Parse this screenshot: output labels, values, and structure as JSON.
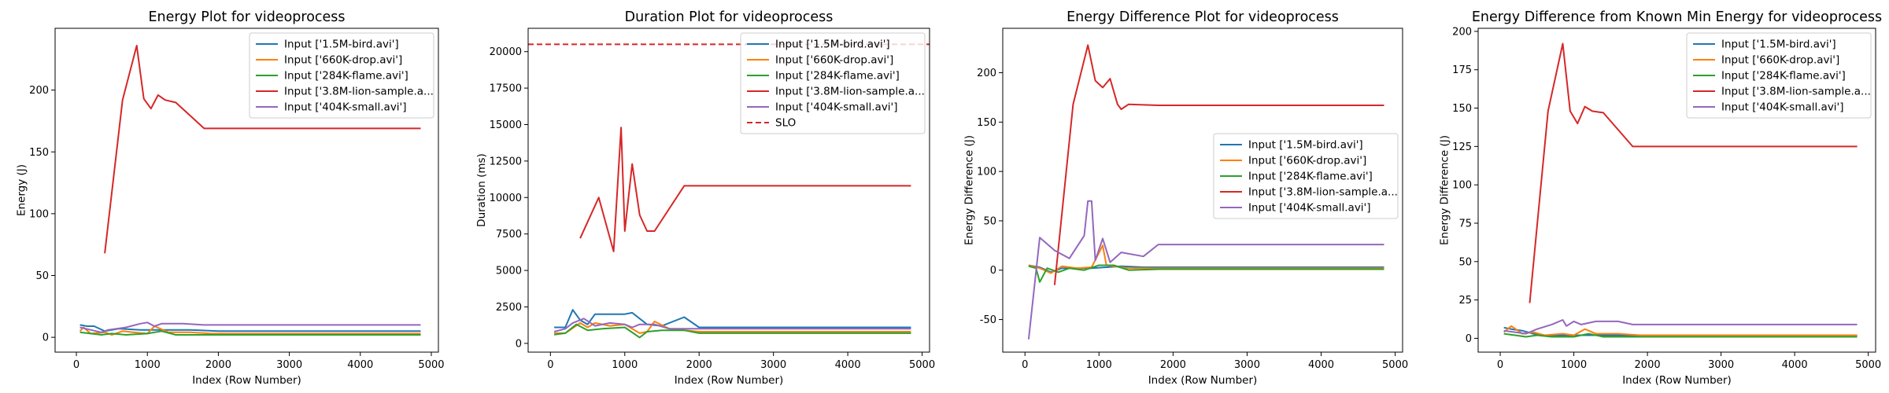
{
  "colors": {
    "bird": "#1f77b4",
    "drop": "#ff7f0e",
    "flame": "#2ca02c",
    "lion": "#d62728",
    "small": "#9467bd",
    "slo": "#d62728"
  },
  "chart_data": [
    {
      "type": "line",
      "title": "Energy Plot for videoprocess",
      "xlabel": "Index (Row Number)",
      "ylabel": "Energy (J)",
      "xlim": [
        -300,
        5100
      ],
      "ylim": [
        -12,
        250
      ],
      "xticks": [
        0,
        1000,
        2000,
        3000,
        4000,
        5000
      ],
      "yticks": [
        0,
        50,
        100,
        150,
        200
      ],
      "legend": "upper right",
      "series": [
        {
          "name": "Input ['1.5M-bird.avi']",
          "color": "#1f77b4",
          "x": [
            50,
            150,
            250,
            400,
            600,
            900,
            1100,
            1300,
            1600,
            2000,
            4850
          ],
          "y": [
            10,
            9,
            9,
            5,
            7,
            6,
            6,
            6,
            6,
            5,
            5
          ]
        },
        {
          "name": "Input ['660K-drop.avi']",
          "color": "#ff7f0e",
          "x": [
            50,
            100,
            200,
            400,
            500,
            650,
            800,
            1000,
            1100,
            1300,
            1600,
            1900,
            4850
          ],
          "y": [
            5,
            8,
            3,
            4,
            2,
            5,
            4,
            3,
            9,
            4,
            4,
            3,
            3
          ]
        },
        {
          "name": "Input ['284K-flame.avi']",
          "color": "#2ca02c",
          "x": [
            50,
            200,
            350,
            500,
            700,
            1000,
            1200,
            1400,
            1700,
            2000,
            4850
          ],
          "y": [
            4,
            3,
            2,
            3,
            2,
            3,
            5,
            2,
            2,
            2,
            2
          ]
        },
        {
          "name": "Input ['3.8M-lion-sample.a...",
          "color": "#d62728",
          "x": [
            400,
            650,
            850,
            950,
            1050,
            1150,
            1250,
            1400,
            1800,
            4850
          ],
          "y": [
            68,
            192,
            236,
            193,
            185,
            196,
            192,
            190,
            169,
            169
          ]
        },
        {
          "name": "Input ['404K-small.avi']",
          "color": "#9467bd",
          "x": [
            50,
            200,
            350,
            450,
            700,
            900,
            1000,
            1100,
            1200,
            1500,
            1800,
            4850
          ],
          "y": [
            8,
            6,
            4,
            6,
            8,
            11,
            12,
            9,
            11,
            11,
            10,
            10
          ]
        }
      ]
    },
    {
      "type": "line",
      "title": "Duration Plot for videoprocess",
      "xlabel": "Index (Row Number)",
      "ylabel": "Duration (ms)",
      "xlim": [
        -300,
        5100
      ],
      "ylim": [
        -600,
        21600
      ],
      "xticks": [
        0,
        1000,
        2000,
        3000,
        4000,
        5000
      ],
      "yticks": [
        0,
        2500,
        5000,
        7500,
        10000,
        12500,
        15000,
        17500,
        20000
      ],
      "legend": "upper right",
      "slo": {
        "name": "SLO",
        "color": "#d62728",
        "y": 20500
      },
      "series": [
        {
          "name": "Input ['1.5M-bird.avi']",
          "color": "#1f77b4",
          "x": [
            50,
            200,
            300,
            400,
            500,
            600,
            1000,
            1100,
            1300,
            1500,
            1800,
            2000,
            4850
          ],
          "y": [
            1100,
            1100,
            2300,
            1600,
            1300,
            2000,
            2000,
            2100,
            1300,
            1200,
            1800,
            1100,
            1100
          ]
        },
        {
          "name": "Input ['660K-drop.avi']",
          "color": "#ff7f0e",
          "x": [
            50,
            200,
            400,
            500,
            600,
            800,
            1000,
            1100,
            1200,
            1300,
            1400,
            1600,
            2000,
            4850
          ],
          "y": [
            700,
            700,
            1400,
            1100,
            1400,
            1200,
            1300,
            1000,
            700,
            800,
            1500,
            1000,
            800,
            800
          ]
        },
        {
          "name": "Input ['284K-flame.avi']",
          "color": "#2ca02c",
          "x": [
            50,
            200,
            350,
            500,
            700,
            1000,
            1200,
            1300,
            1500,
            1800,
            2000,
            4850
          ],
          "y": [
            600,
            700,
            1300,
            900,
            1000,
            1100,
            400,
            800,
            900,
            900,
            700,
            700
          ]
        },
        {
          "name": "Input ['3.8M-lion-sample.a...",
          "color": "#d62728",
          "x": [
            400,
            650,
            850,
            950,
            1000,
            1100,
            1200,
            1300,
            1400,
            1800,
            4850
          ],
          "y": [
            7200,
            10000,
            6300,
            14800,
            7700,
            12300,
            8800,
            7700,
            7700,
            10800,
            10800
          ]
        },
        {
          "name": "Input ['404K-small.avi']",
          "color": "#9467bd",
          "x": [
            50,
            200,
            300,
            450,
            600,
            800,
            1000,
            1100,
            1200,
            1400,
            1600,
            1800,
            4850
          ],
          "y": [
            800,
            1000,
            1400,
            1700,
            1200,
            1400,
            1300,
            1100,
            1300,
            1300,
            1000,
            1000,
            1000
          ]
        }
      ]
    },
    {
      "type": "line",
      "title": "Energy Difference Plot for videoprocess",
      "xlabel": "Index (Row Number)",
      "ylabel": "Energy Difference (J)",
      "xlim": [
        -300,
        5100
      ],
      "ylim": [
        -83,
        245
      ],
      "xticks": [
        0,
        1000,
        2000,
        3000,
        4000,
        5000
      ],
      "yticks": [
        -50,
        0,
        50,
        100,
        150,
        200
      ],
      "legend": "center right",
      "series": [
        {
          "name": "Input ['1.5M-bird.avi']",
          "color": "#1f77b4",
          "x": [
            50,
            200,
            350,
            500,
            700,
            900,
            1100,
            1300,
            1600,
            2000,
            4850
          ],
          "y": [
            5,
            3,
            -2,
            2,
            2,
            2,
            3,
            4,
            3,
            3,
            3
          ]
        },
        {
          "name": "Input ['660K-drop.avi']",
          "color": "#ff7f0e",
          "x": [
            50,
            200,
            350,
            500,
            700,
            900,
            1050,
            1100,
            1200,
            1400,
            1800,
            4850
          ],
          "y": [
            5,
            2,
            -3,
            4,
            2,
            3,
            25,
            5,
            4,
            2,
            2,
            2
          ]
        },
        {
          "name": "Input ['284K-flame.avi']",
          "color": "#2ca02c",
          "x": [
            50,
            150,
            200,
            300,
            450,
            600,
            800,
            1000,
            1200,
            1400,
            1800,
            4850
          ],
          "y": [
            4,
            2,
            -12,
            2,
            -2,
            2,
            0,
            5,
            5,
            0,
            1,
            1
          ]
        },
        {
          "name": "Input ['3.8M-lion-sample.a...",
          "color": "#d62728",
          "x": [
            400,
            650,
            850,
            950,
            1050,
            1150,
            1250,
            1300,
            1400,
            1800,
            4850
          ],
          "y": [
            -15,
            168,
            228,
            192,
            185,
            194,
            168,
            163,
            168,
            167,
            167
          ]
        },
        {
          "name": "Input ['404K-small.avi']",
          "color": "#9467bd",
          "x": [
            50,
            200,
            400,
            600,
            800,
            850,
            900,
            950,
            1050,
            1150,
            1300,
            1600,
            1800,
            4850
          ],
          "y": [
            -70,
            33,
            20,
            12,
            35,
            70,
            70,
            10,
            32,
            8,
            18,
            14,
            26,
            26
          ]
        }
      ]
    },
    {
      "type": "line",
      "title": "Energy Difference from Known Min Energy for videoprocess",
      "xlabel": "Index (Row Number)",
      "ylabel": "Energy Difference (J)",
      "xlim": [
        -300,
        5100
      ],
      "ylim": [
        -9,
        202
      ],
      "xticks": [
        0,
        1000,
        2000,
        3000,
        4000,
        5000
      ],
      "yticks": [
        0,
        25,
        50,
        75,
        100,
        125,
        150,
        175,
        200
      ],
      "legend": "upper right",
      "series": [
        {
          "name": "Input ['1.5M-bird.avi']",
          "color": "#1f77b4",
          "x": [
            50,
            150,
            300,
            450,
            600,
            900,
            1100,
            1400,
            1800,
            4850
          ],
          "y": [
            7,
            6,
            5,
            3,
            2,
            2,
            2,
            2,
            2,
            2
          ]
        },
        {
          "name": "Input ['660K-drop.avi']",
          "color": "#ff7f0e",
          "x": [
            50,
            150,
            300,
            450,
            600,
            850,
            1000,
            1150,
            1300,
            1600,
            1900,
            4850
          ],
          "y": [
            4,
            8,
            3,
            4,
            2,
            3,
            2,
            6,
            3,
            3,
            2,
            2
          ]
        },
        {
          "name": "Input ['284K-flame.avi']",
          "color": "#2ca02c",
          "x": [
            50,
            200,
            350,
            500,
            700,
            1000,
            1200,
            1400,
            1800,
            4850
          ],
          "y": [
            3,
            2,
            1,
            2,
            1,
            1,
            3,
            1,
            1,
            1
          ]
        },
        {
          "name": "Input ['3.8M-lion-sample.a...",
          "color": "#d62728",
          "x": [
            400,
            650,
            850,
            950,
            1050,
            1150,
            1250,
            1400,
            1800,
            4850
          ],
          "y": [
            23,
            148,
            192,
            148,
            140,
            151,
            148,
            147,
            125,
            125
          ]
        },
        {
          "name": "Input ['404K-small.avi']",
          "color": "#9467bd",
          "x": [
            50,
            200,
            350,
            500,
            700,
            850,
            900,
            1000,
            1100,
            1300,
            1600,
            1800,
            4850
          ],
          "y": [
            5,
            4,
            3,
            6,
            9,
            12,
            8,
            11,
            9,
            11,
            11,
            9,
            9
          ]
        }
      ]
    }
  ]
}
